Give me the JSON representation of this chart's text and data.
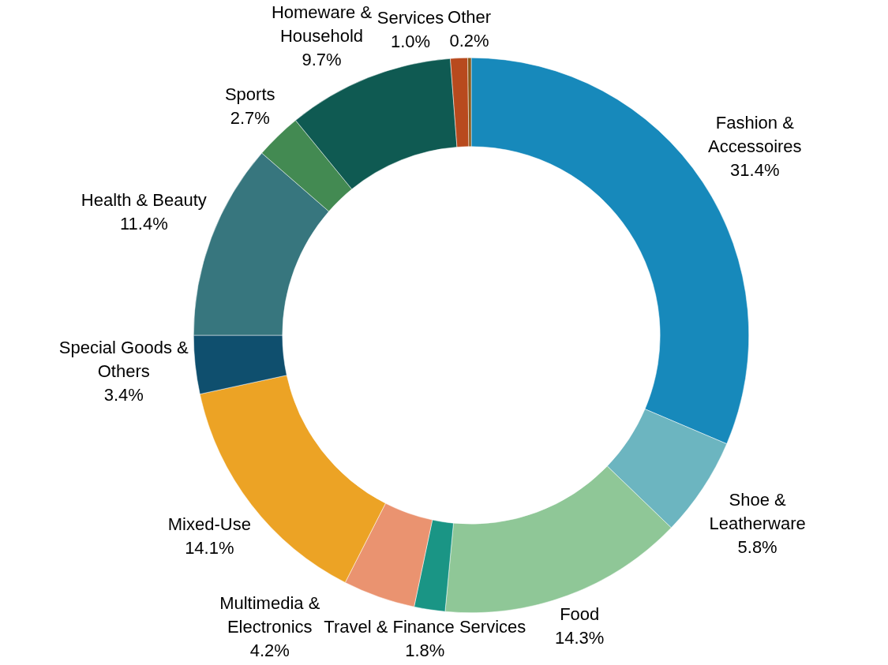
{
  "chart_data": {
    "type": "donut",
    "categories": [
      "Fashion & Accessoires",
      "Shoe & Leatherware",
      "Food",
      "Travel & Finance Services",
      "Multimedia & Electronics",
      "Mixed-Use",
      "Special Goods & Others",
      "Health & Beauty",
      "Sports",
      "Homeware & Household",
      "Services",
      "Other"
    ],
    "values": [
      31.4,
      5.8,
      14.3,
      1.8,
      4.2,
      14.1,
      3.4,
      11.4,
      2.7,
      9.7,
      1.0,
      0.2
    ],
    "colors": [
      "#1789bb",
      "#6cb5c0",
      "#8fc797",
      "#1a9585",
      "#ea9370",
      "#eca325",
      "#0f4f6e",
      "#37767e",
      "#438a52",
      "#0f5a52",
      "#b84a1e",
      "#8a5a1a"
    ],
    "value_labels": [
      "31.4%",
      "5.8%",
      "14.3%",
      "1.8%",
      "4.2%",
      "14.1%",
      "3.4%",
      "11.4%",
      "2.7%",
      "9.7%",
      "1.0%",
      "0.2%"
    ],
    "data_labels": true,
    "legend": false
  }
}
